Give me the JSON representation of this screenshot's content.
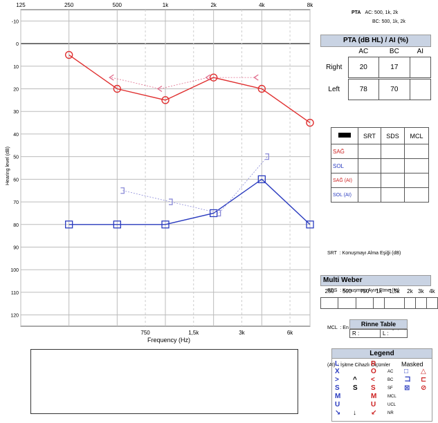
{
  "chart_data": {
    "type": "line",
    "xlabel": "Frequency (Hz)",
    "ylabel": "Hearing level (dB)",
    "x_top_ticks": [
      "125",
      "250",
      "500",
      "1k",
      "2k",
      "4k",
      "8k"
    ],
    "x_bottom_ticks": [
      "750",
      "1,5k",
      "3k",
      "6k"
    ],
    "x_top_freqs": [
      125,
      250,
      500,
      1000,
      2000,
      4000,
      8000
    ],
    "x_bottom_freqs": [
      750,
      1500,
      3000,
      6000
    ],
    "y_ticks": [
      -10,
      0,
      10,
      20,
      30,
      40,
      50,
      60,
      70,
      80,
      90,
      100,
      110,
      120
    ],
    "ylim": [
      -15,
      125
    ],
    "xlim": [
      125,
      8000
    ],
    "series": [
      {
        "name": "Right AC",
        "color": "#e03030",
        "marker": "circle",
        "dashed": false,
        "x": [
          250,
          500,
          1000,
          2000,
          4000,
          8000
        ],
        "y": [
          5,
          20,
          25,
          15,
          20,
          35
        ]
      },
      {
        "name": "Right BC",
        "color": "#e06a8a",
        "marker": "lt",
        "dashed": true,
        "x": [
          500,
          1000,
          2000,
          4000
        ],
        "y": [
          15,
          20,
          15,
          15
        ]
      },
      {
        "name": "Left AC",
        "color": "#2a3bbf",
        "marker": "square",
        "dashed": false,
        "x": [
          250,
          500,
          1000,
          2000,
          4000,
          8000
        ],
        "y": [
          80,
          80,
          80,
          75,
          60,
          80
        ]
      },
      {
        "name": "Left BC",
        "color": "#8a8ad8",
        "marker": "bracket",
        "dashed": true,
        "x": [
          500,
          1000,
          2000,
          4000
        ],
        "y": [
          65,
          70,
          75,
          50
        ]
      }
    ]
  },
  "pta_info": {
    "label": "PTA",
    "ac": "AC: 500, 1k, 2k",
    "bc": "BC: 500, 1k, 2k"
  },
  "pta_table": {
    "title": "PTA (dB HL) / AI (%)",
    "columns": [
      "AC",
      "BC",
      "AI"
    ],
    "rows": [
      {
        "label": "Right",
        "ac": "20",
        "bc": "17",
        "ai": ""
      },
      {
        "label": "Left",
        "ac": "78",
        "bc": "70",
        "ai": ""
      }
    ]
  },
  "speech_table": {
    "columns": [
      "SRT",
      "SDS",
      "MCL"
    ],
    "rows": [
      {
        "label": "SAĞ",
        "color": "#cc1f1f"
      },
      {
        "label": "SOL",
        "color": "#2a3bbf"
      },
      {
        "label": "SAĞ (AI)",
        "color": "#cc1f1f"
      },
      {
        "label": "SOL (AI)",
        "color": "#2a3bbf"
      }
    ]
  },
  "abbreviations": [
    "SRT  : Konuşmayı Alma Eşiği (dB)",
    "SDS  : Konuşmayı Ayırt Etme (%)",
    "MCL  : En Rahat Ses Yüksekliği (dB)",
    "(AI)  : İşitme Cihazlı Ölçümler"
  ],
  "multi_weber": {
    "title": "Multi Weber",
    "freqs": [
      "250",
      "500",
      "750",
      "1k",
      "1,5k",
      "2k",
      "3k",
      "4k"
    ]
  },
  "rinne": {
    "title": "Rinne Table",
    "r": "R :",
    "l": "L :"
  },
  "legend": {
    "title": "Legend",
    "l": "L",
    "r": "R",
    "masked": "Masked",
    "rows": [
      {
        "l": "X",
        "mid": "",
        "r": "O",
        "label": "AC",
        "m1": "□",
        "m2": "△"
      },
      {
        "l": ">",
        "mid": "^",
        "r": "<",
        "label": "BC",
        "m1": "コ",
        "m2": "⊏"
      },
      {
        "l": "S",
        "mid": "S",
        "r": "S",
        "label": "SF",
        "m1": "⊠",
        "m2": "⊘"
      },
      {
        "l": "M",
        "mid": "",
        "r": "M",
        "label": "MCL",
        "m1": "",
        "m2": ""
      },
      {
        "l": "U",
        "mid": "",
        "r": "U",
        "label": "UCL",
        "m1": "",
        "m2": ""
      },
      {
        "l": "↘",
        "mid": "↓",
        "r": "↙",
        "label": "NR",
        "m1": "",
        "m2": ""
      }
    ]
  }
}
